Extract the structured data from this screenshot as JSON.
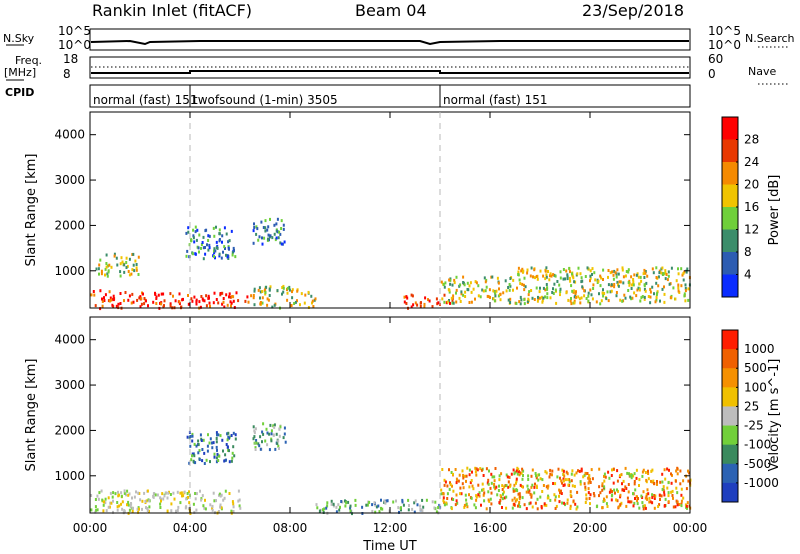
{
  "header": {
    "station": "Rankin Inlet (fitACF)",
    "beam": "Beam 04",
    "date": "23/Sep/2018"
  },
  "left_labels": {
    "nsky": "N.Sky",
    "freq": "Freq.",
    "freq_unit": "[MHz]",
    "cpid": "CPID"
  },
  "right_labels": {
    "nsearch": "N.Search",
    "nave": "Nave"
  },
  "nsky_ticks": {
    "top": "10^5",
    "bottom": "10^0"
  },
  "nsearch_ticks": {
    "top": "10^5",
    "bottom": "10^0"
  },
  "freq_ticks": {
    "top": "18",
    "bottom": "8"
  },
  "nave_ticks": {
    "top": "60",
    "bottom": "0"
  },
  "cpid_segments": [
    {
      "label": "normal (fast) 151",
      "start_hour": 0,
      "end_hour": 4
    },
    {
      "label": "twofsound (1-min) 3505",
      "start_hour": 4,
      "end_hour": 14
    },
    {
      "label": "normal (fast) 151",
      "start_hour": 14,
      "end_hour": 24
    }
  ],
  "chart_data": [
    {
      "type": "heatmap",
      "title": "",
      "ylabel": "Slant Range [km]",
      "ylim": [
        180,
        4500
      ],
      "yticks": [
        "1000",
        "2000",
        "3000",
        "4000"
      ],
      "xticks_hours": [
        0,
        4,
        8,
        12,
        16,
        20,
        24
      ],
      "colorbar": {
        "label": "Power [dB]",
        "range": [
          0,
          30
        ],
        "tick_labels": [
          "4",
          "8",
          "12",
          "16",
          "20",
          "24",
          "28"
        ],
        "colors": [
          "#0a2cff",
          "#2c5cb2",
          "#3b8d6b",
          "#6fcf3a",
          "#f0c400",
          "#f58a00",
          "#e83800",
          "#ff0000"
        ]
      },
      "regions": [
        {
          "x": [
            0.0,
            2.2
          ],
          "y": [
            200,
            600
          ],
          "level": "high"
        },
        {
          "x": [
            2.2,
            6.5
          ],
          "y": [
            200,
            550
          ],
          "level": "high"
        },
        {
          "x": [
            6.5,
            9.0
          ],
          "y": [
            200,
            700
          ],
          "level": "mid"
        },
        {
          "x": [
            12.5,
            14.5
          ],
          "y": [
            200,
            500
          ],
          "level": "high"
        },
        {
          "x": [
            14.0,
            17.0
          ],
          "y": [
            300,
            900
          ],
          "level": "mid"
        },
        {
          "x": [
            17.0,
            24.0
          ],
          "y": [
            300,
            1100
          ],
          "level": "mid"
        },
        {
          "x": [
            3.8,
            5.8
          ],
          "y": [
            1300,
            2000
          ],
          "level": "low"
        },
        {
          "x": [
            6.5,
            7.8
          ],
          "y": [
            1600,
            2200
          ],
          "level": "low"
        },
        {
          "x": [
            0.2,
            2.0
          ],
          "y": [
            900,
            1400
          ],
          "level": "mid"
        }
      ]
    },
    {
      "type": "heatmap",
      "title": "",
      "ylabel": "Slant Range [km]",
      "ylim": [
        180,
        4500
      ],
      "yticks": [
        "1000",
        "2000",
        "3000",
        "4000"
      ],
      "xticks": [
        "00:00",
        "04:00",
        "08:00",
        "12:00",
        "16:00",
        "20:00",
        "00:00"
      ],
      "xlabel": "Time UT",
      "colorbar": {
        "label": "Velocity [m s^-1]",
        "tick_labels": [
          "1000",
          "500",
          "100",
          "25",
          "-25",
          "-100",
          "-500",
          "-1000"
        ],
        "colors": [
          "#1f3fbf",
          "#2b62b3",
          "#3a8a5e",
          "#72d03a",
          "#bdbdbd",
          "#f0c000",
          "#f59000",
          "#f06000",
          "#ff1e00"
        ]
      },
      "regions": [
        {
          "x": [
            0.0,
            6.0
          ],
          "y": [
            200,
            700
          ],
          "level": "gray"
        },
        {
          "x": [
            3.8,
            5.8
          ],
          "y": [
            1300,
            2000
          ],
          "level": "blue"
        },
        {
          "x": [
            6.5,
            7.8
          ],
          "y": [
            1600,
            2200
          ],
          "level": "green"
        },
        {
          "x": [
            9.0,
            14.0
          ],
          "y": [
            200,
            500
          ],
          "level": "green"
        },
        {
          "x": [
            14.0,
            24.0
          ],
          "y": [
            300,
            1200
          ],
          "level": "orange"
        }
      ]
    }
  ],
  "colors": {
    "dashed": "#b8b8b8",
    "axis": "#000000"
  }
}
